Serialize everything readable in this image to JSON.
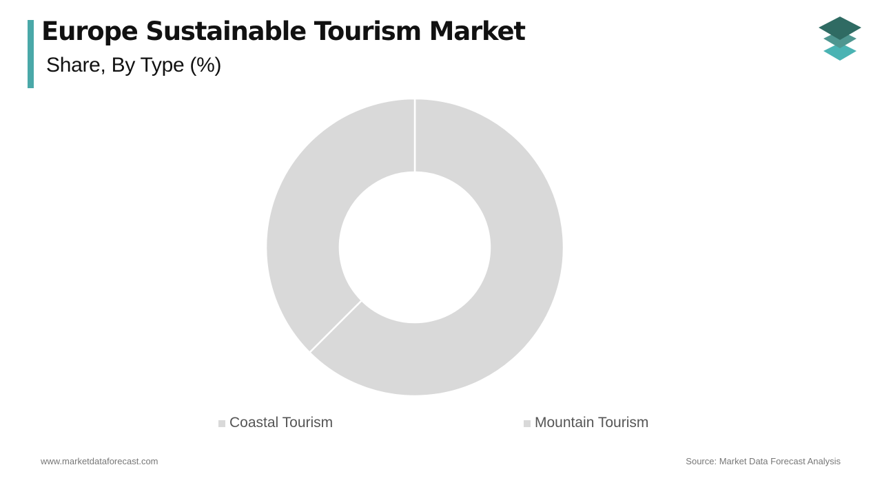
{
  "header": {
    "title": "Europe Sustainable Tourism Market",
    "subtitle": "Share, By Type (%)",
    "accent_color": "#4aa8a8"
  },
  "logo": {
    "icon": "stacked-layers-icon",
    "colors": [
      "#2f6b63",
      "#4e9690",
      "#4ab3b3"
    ]
  },
  "legend": {
    "items": [
      {
        "label": "Coastal Tourism",
        "color": "#d9d9d9"
      },
      {
        "label": "Mountain Tourism",
        "color": "#d9d9d9"
      }
    ]
  },
  "footer": {
    "website": "www.marketdataforecast.com",
    "source": "Source: Market Data Forecast Analysis"
  },
  "chart_data": {
    "type": "pie",
    "subtype": "donut",
    "title": "Europe Sustainable Tourism Market",
    "subtitle": "Share, By Type (%)",
    "categories": [
      "Coastal Tourism",
      "Mountain Tourism"
    ],
    "values": [
      62.5,
      37.5
    ],
    "colors": [
      "#d9d9d9",
      "#d9d9d9"
    ],
    "start_angle_deg": 0,
    "direction": "clockwise",
    "legend_position": "bottom",
    "data_labels": false
  }
}
